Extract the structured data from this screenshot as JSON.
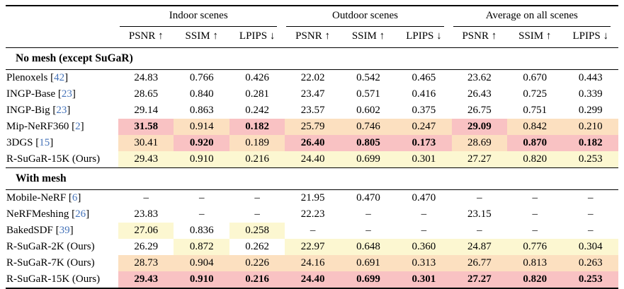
{
  "table": {
    "column_groups": [
      {
        "label": "Indoor scenes"
      },
      {
        "label": "Outdoor scenes"
      },
      {
        "label": "Average on all scenes"
      }
    ],
    "metric_headers": [
      "PSNR ↑",
      "SSIM ↑",
      "LPIPS ↓"
    ],
    "highlight_colors": {
      "best": "#f9c2c3",
      "second_best": "#fce0c0",
      "third_best": "#fcf7d1"
    },
    "citation_color": "#4472b8",
    "sections": [
      {
        "label": "No mesh (except SuGaR)",
        "rows": [
          {
            "method": "Plenoxels",
            "cite": "42",
            "values": [
              "24.83",
              "0.766",
              "0.426",
              "22.02",
              "0.542",
              "0.465",
              "23.62",
              "0.670",
              "0.443"
            ],
            "hl": [
              0,
              0,
              0,
              0,
              0,
              0,
              0,
              0,
              0
            ]
          },
          {
            "method": "INGP-Base",
            "cite": "23",
            "values": [
              "28.65",
              "0.840",
              "0.281",
              "23.47",
              "0.571",
              "0.416",
              "26.43",
              "0.725",
              "0.339"
            ],
            "hl": [
              0,
              0,
              0,
              0,
              0,
              0,
              0,
              0,
              0
            ]
          },
          {
            "method": "INGP-Big",
            "cite": "23",
            "values": [
              "29.14",
              "0.863",
              "0.242",
              "23.57",
              "0.602",
              "0.375",
              "26.75",
              "0.751",
              "0.299"
            ],
            "hl": [
              0,
              0,
              0,
              0,
              0,
              0,
              0,
              0,
              0
            ]
          },
          {
            "method": "Mip-NeRF360",
            "cite": "2",
            "values": [
              "31.58",
              "0.914",
              "0.182",
              "25.79",
              "0.746",
              "0.247",
              "29.09",
              "0.842",
              "0.210"
            ],
            "hl": [
              1,
              2,
              1,
              2,
              2,
              2,
              1,
              2,
              2
            ]
          },
          {
            "method": "3DGS",
            "cite": "15",
            "values": [
              "30.41",
              "0.920",
              "0.189",
              "26.40",
              "0.805",
              "0.173",
              "28.69",
              "0.870",
              "0.182"
            ],
            "hl": [
              2,
              1,
              2,
              1,
              1,
              1,
              2,
              1,
              1
            ]
          },
          {
            "method": "R-SuGaR-15K (Ours)",
            "cite": "",
            "values": [
              "29.43",
              "0.910",
              "0.216",
              "24.40",
              "0.699",
              "0.301",
              "27.27",
              "0.820",
              "0.253"
            ],
            "hl": [
              3,
              3,
              3,
              3,
              3,
              3,
              3,
              3,
              3
            ]
          }
        ]
      },
      {
        "label": "With mesh",
        "rows": [
          {
            "method": "Mobile-NeRF",
            "cite": "6",
            "values": [
              "–",
              "–",
              "–",
              "21.95",
              "0.470",
              "0.470",
              "–",
              "–",
              "–"
            ],
            "hl": [
              0,
              0,
              0,
              0,
              0,
              0,
              0,
              0,
              0
            ]
          },
          {
            "method": "NeRFMeshing",
            "cite": "26",
            "values": [
              "23.83",
              "–",
              "–",
              "22.23",
              "–",
              "–",
              "23.15",
              "–",
              "–"
            ],
            "hl": [
              0,
              0,
              0,
              0,
              0,
              0,
              0,
              0,
              0
            ]
          },
          {
            "method": "BakedSDF",
            "cite": "39",
            "values": [
              "27.06",
              "0.836",
              "0.258",
              "–",
              "–",
              "–",
              "–",
              "–",
              "–"
            ],
            "hl": [
              3,
              0,
              3,
              0,
              0,
              0,
              0,
              0,
              0
            ]
          },
          {
            "method": "R-SuGaR-2K (Ours)",
            "cite": "",
            "values": [
              "26.29",
              "0.872",
              "0.262",
              "22.97",
              "0.648",
              "0.360",
              "24.87",
              "0.776",
              "0.304"
            ],
            "hl": [
              0,
              3,
              0,
              3,
              3,
              3,
              3,
              3,
              3
            ]
          },
          {
            "method": "R-SuGaR-7K (Ours)",
            "cite": "",
            "values": [
              "28.73",
              "0.904",
              "0.226",
              "24.16",
              "0.691",
              "0.313",
              "26.77",
              "0.813",
              "0.263"
            ],
            "hl": [
              2,
              2,
              2,
              2,
              2,
              2,
              2,
              2,
              2
            ]
          },
          {
            "method": "R-SuGaR-15K (Ours)",
            "cite": "",
            "values": [
              "29.43",
              "0.910",
              "0.216",
              "24.40",
              "0.699",
              "0.301",
              "27.27",
              "0.820",
              "0.253"
            ],
            "hl": [
              1,
              1,
              1,
              1,
              1,
              1,
              1,
              1,
              1
            ]
          }
        ]
      }
    ]
  }
}
